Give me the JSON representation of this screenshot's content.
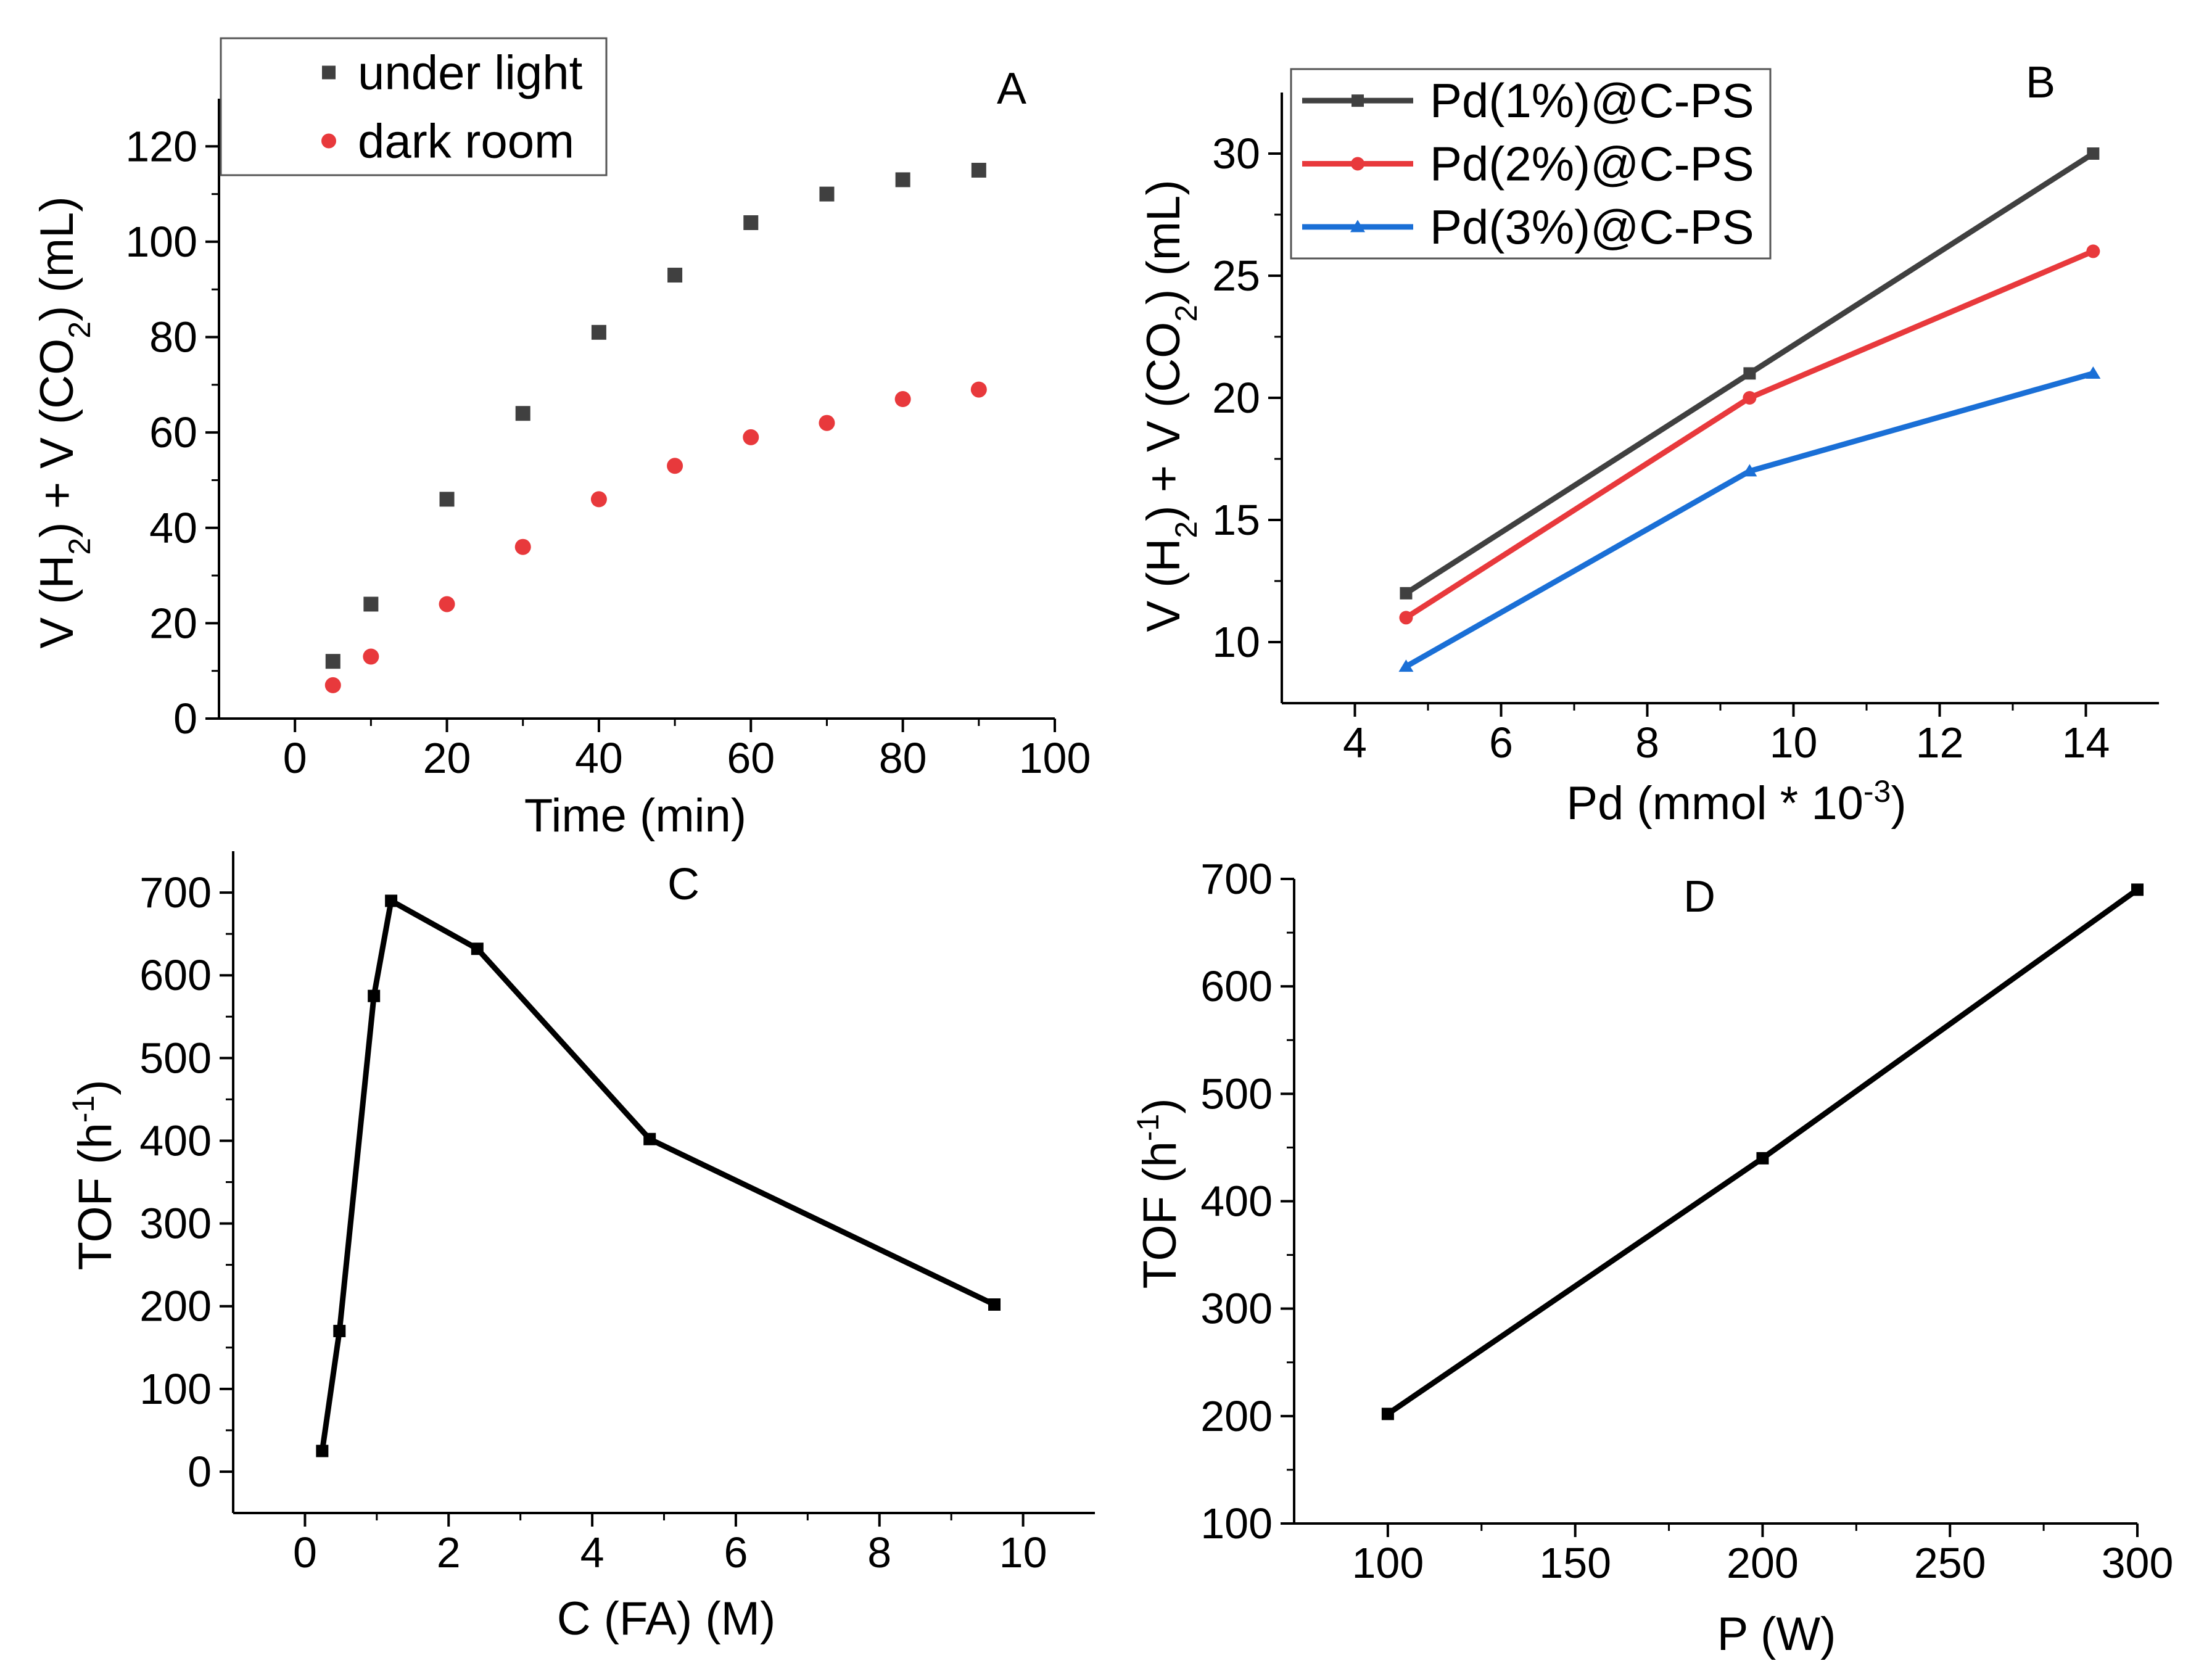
{
  "chart_data": [
    {
      "panel": "A",
      "type": "scatter",
      "xlabel": "Time (min)",
      "ylabel": {
        "pre": "V (H",
        "sub1": "2",
        "mid": ") + V (CO",
        "sub2": "2",
        "post": ") (mL)"
      },
      "xlim": [
        -10,
        100
      ],
      "ylim": [
        0,
        130
      ],
      "xticks": [
        0,
        20,
        40,
        60,
        80,
        100
      ],
      "yticks": [
        0,
        20,
        40,
        60,
        80,
        100,
        120
      ],
      "legend_position": "top-left",
      "series": [
        {
          "name": "under light",
          "marker": "square",
          "color": "#404040",
          "x": [
            5,
            10,
            20,
            30,
            40,
            50,
            60,
            70,
            80,
            90
          ],
          "y": [
            12,
            24,
            46,
            64,
            81,
            93,
            104,
            110,
            113,
            115
          ]
        },
        {
          "name": "dark room",
          "marker": "circle",
          "color": "#e8393c",
          "x": [
            5,
            10,
            20,
            30,
            40,
            50,
            60,
            70,
            80,
            90
          ],
          "y": [
            7,
            13,
            24,
            36,
            46,
            53,
            59,
            62,
            67,
            69
          ]
        }
      ]
    },
    {
      "panel": "B",
      "type": "line",
      "xlabel": {
        "pre": "Pd (mmol * 10",
        "sup": "-3",
        "post": ")"
      },
      "ylabel": {
        "pre": "V (H",
        "sub1": "2",
        "mid": ") + V (CO",
        "sub2": "2",
        "post": ") (mL)"
      },
      "xlim": [
        3,
        15
      ],
      "ylim": [
        7.5,
        32.5
      ],
      "xticks": [
        4,
        6,
        8,
        10,
        12,
        14
      ],
      "yticks": [
        10,
        15,
        20,
        25,
        30
      ],
      "legend_position": "top-left",
      "series": [
        {
          "name": "Pd(1%)@C-PS",
          "marker": "square",
          "color": "#404040",
          "x": [
            4.7,
            9.4,
            14.1
          ],
          "y": [
            12,
            21,
            30
          ]
        },
        {
          "name": "Pd(2%)@C-PS",
          "marker": "circle",
          "color": "#e8393c",
          "x": [
            4.7,
            9.4,
            14.1
          ],
          "y": [
            11,
            20,
            26
          ]
        },
        {
          "name": "Pd(3%)@C-PS",
          "marker": "triangle",
          "color": "#1a6fd6",
          "x": [
            4.7,
            9.4,
            14.1
          ],
          "y": [
            9,
            17,
            21
          ]
        }
      ]
    },
    {
      "panel": "C",
      "type": "line",
      "xlabel": "C (FA) (M)",
      "ylabel": {
        "pre": "TOF (h",
        "sup": "-1",
        "post": ")"
      },
      "xlim": [
        -1,
        11
      ],
      "ylim": [
        -50,
        750
      ],
      "xticks": [
        0,
        2,
        4,
        6,
        8,
        10
      ],
      "yticks": [
        0,
        100,
        200,
        300,
        400,
        500,
        600,
        700
      ],
      "series": [
        {
          "name": "TOF",
          "marker": "square",
          "color": "#000000",
          "x": [
            0.24,
            0.48,
            0.96,
            1.2,
            2.4,
            4.8,
            9.6
          ],
          "y": [
            25,
            170,
            575,
            690,
            632,
            402,
            202
          ]
        }
      ]
    },
    {
      "panel": "D",
      "type": "line",
      "xlabel": "P (W)",
      "ylabel": {
        "pre": "TOF (h",
        "sup": "-1",
        "post": ")"
      },
      "xlim": [
        75,
        300
      ],
      "ylim": [
        100,
        700
      ],
      "xticks": [
        100,
        150,
        200,
        250,
        300
      ],
      "yticks": [
        100,
        200,
        300,
        400,
        500,
        600,
        700
      ],
      "series": [
        {
          "name": "TOF",
          "marker": "square",
          "color": "#000000",
          "x": [
            100,
            200,
            300
          ],
          "y": [
            202,
            440,
            690
          ]
        }
      ]
    }
  ]
}
